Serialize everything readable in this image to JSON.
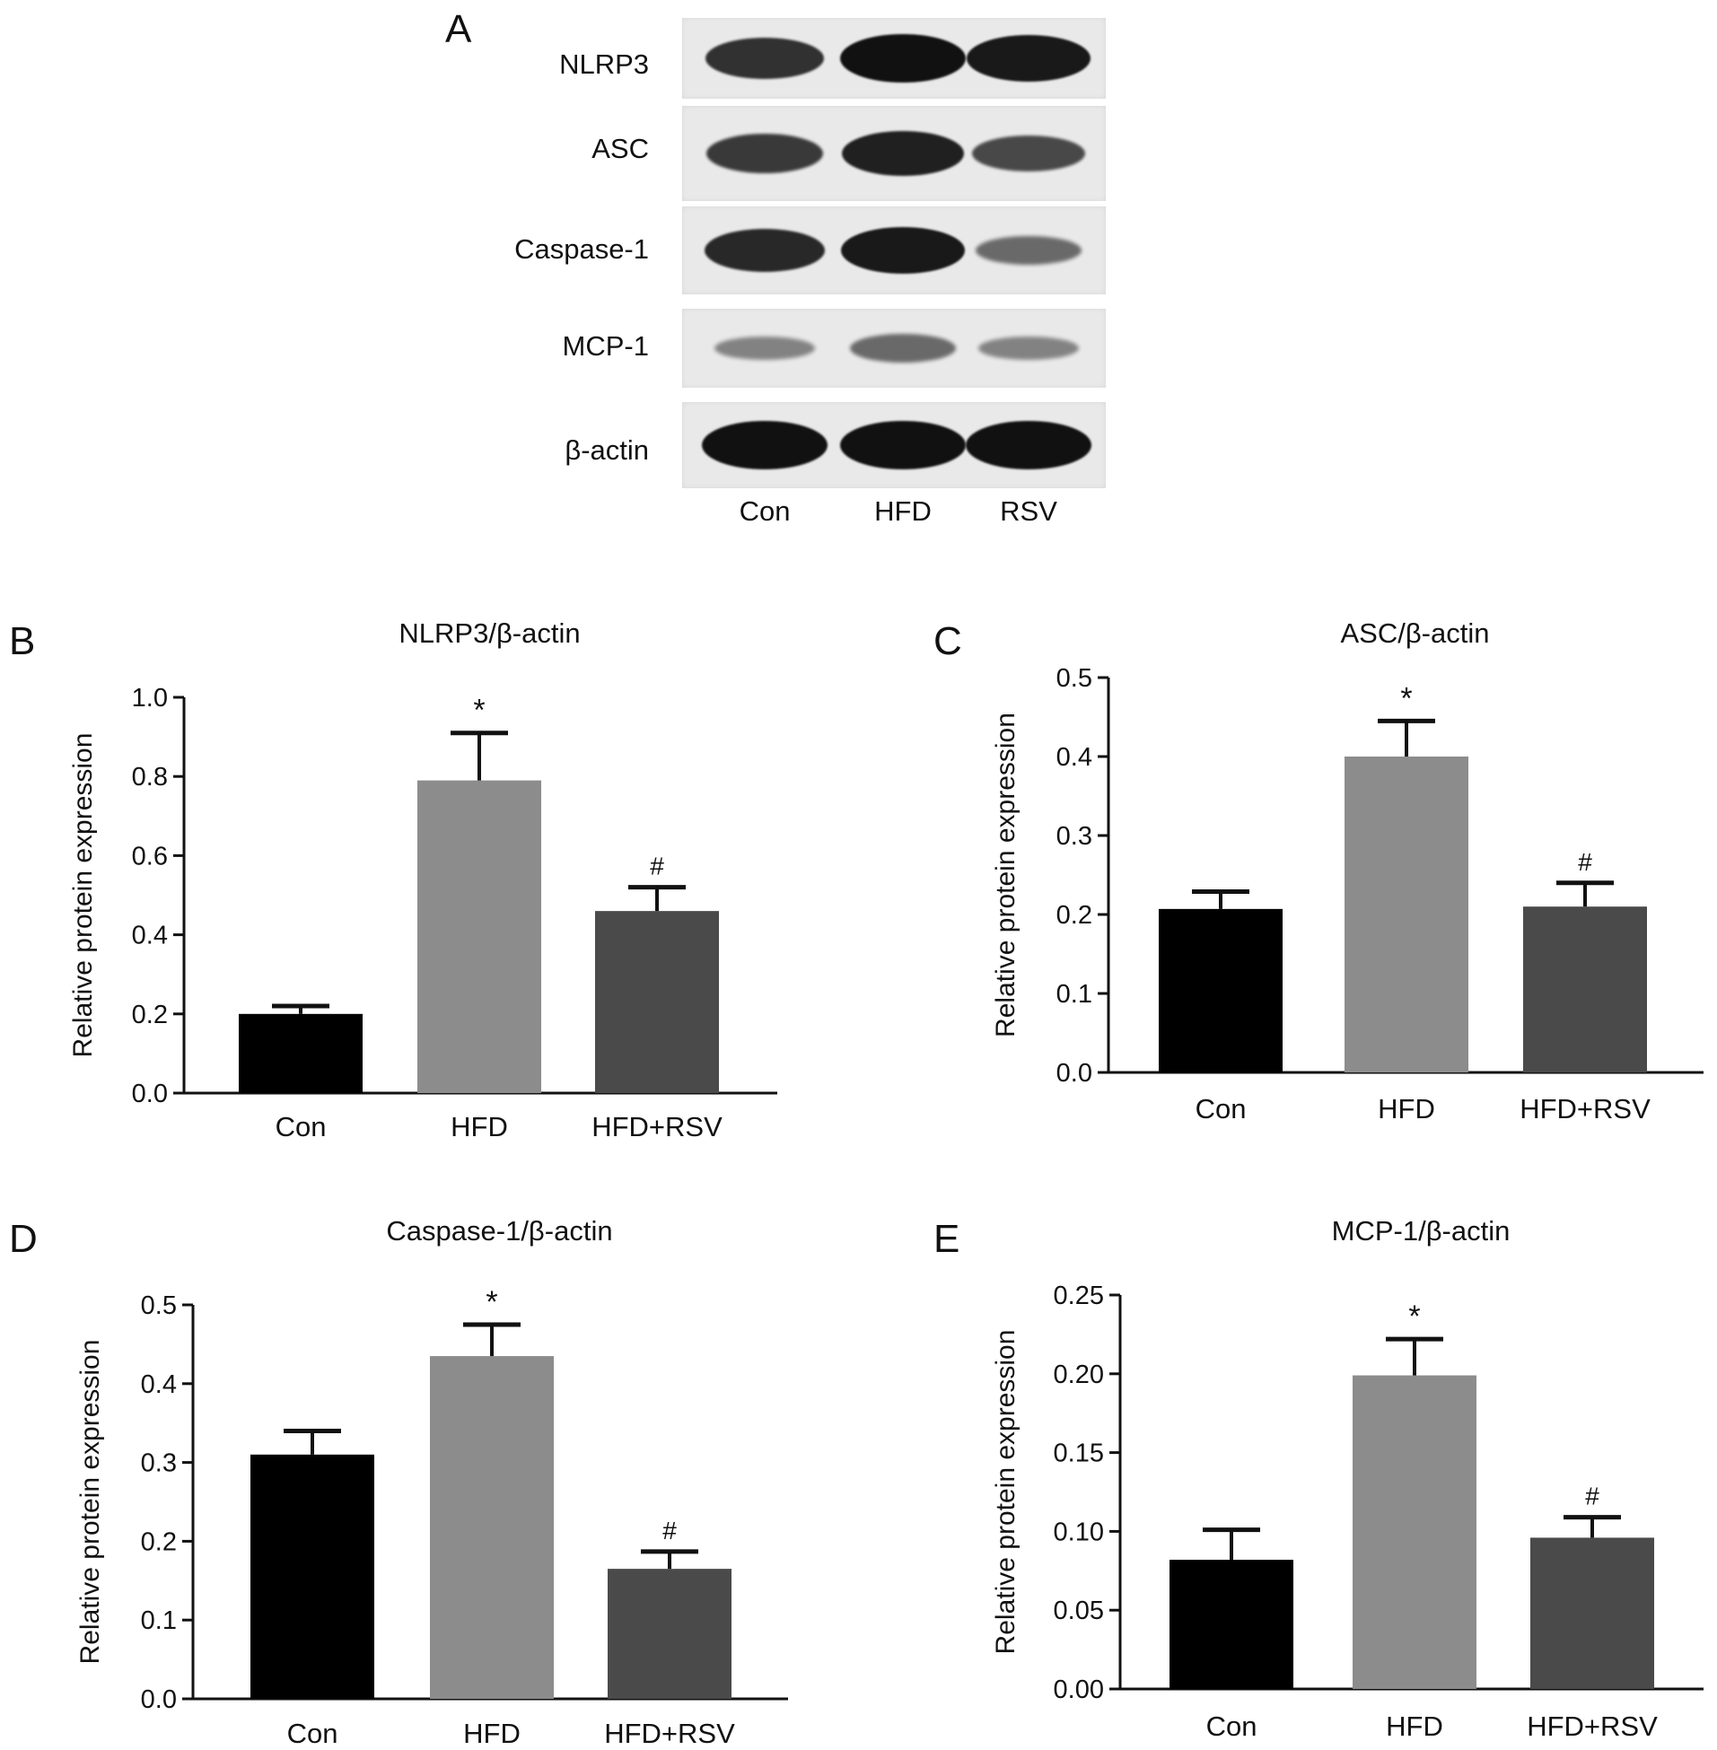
{
  "panel_a": {
    "letter": "A",
    "proteins": [
      "NLRP3",
      "ASC",
      "Caspase-1",
      "MCP-1",
      "β-actin"
    ],
    "lanes": [
      "Con",
      "HFD",
      "RSV"
    ],
    "band_intensity": [
      [
        0.8,
        1.0,
        0.95
      ],
      [
        0.75,
        0.9,
        0.65
      ],
      [
        0.85,
        0.95,
        0.45
      ],
      [
        0.3,
        0.45,
        0.3
      ],
      [
        1.0,
        1.0,
        1.0
      ]
    ]
  },
  "chart_data": [
    {
      "letter": "B",
      "type": "bar",
      "title": "NLRP3/β-actin",
      "ylabel": "Relative protein expression",
      "xlabel": "",
      "categories": [
        "Con",
        "HFD",
        "HFD+RSV"
      ],
      "values": [
        0.2,
        0.79,
        0.46
      ],
      "errors": [
        0.02,
        0.12,
        0.06
      ],
      "significance": [
        "",
        "*",
        "#"
      ],
      "ylim": [
        0,
        1.0
      ],
      "yticks": [
        0.0,
        0.2,
        0.4,
        0.6,
        0.8,
        1.0
      ],
      "ytick_labels": [
        "0.0",
        "0.2",
        "0.4",
        "0.6",
        "0.8",
        "1.0"
      ],
      "colors": [
        "#000000",
        "#8c8c8c",
        "#4a4a4a"
      ]
    },
    {
      "letter": "C",
      "type": "bar",
      "title": "ASC/β-actin",
      "ylabel": "Relative protein expression",
      "xlabel": "",
      "categories": [
        "Con",
        "HFD",
        "HFD+RSV"
      ],
      "values": [
        0.207,
        0.4,
        0.21
      ],
      "errors": [
        0.022,
        0.045,
        0.03
      ],
      "significance": [
        "",
        "*",
        "#"
      ],
      "ylim": [
        0,
        0.5
      ],
      "yticks": [
        0.0,
        0.1,
        0.2,
        0.3,
        0.4,
        0.5
      ],
      "ytick_labels": [
        "0.0",
        "0.1",
        "0.2",
        "0.3",
        "0.4",
        "0.5"
      ],
      "colors": [
        "#000000",
        "#8c8c8c",
        "#4a4a4a"
      ]
    },
    {
      "letter": "D",
      "type": "bar",
      "title": "Caspase-1/β-actin",
      "ylabel": "Relative protein expression",
      "xlabel": "",
      "categories": [
        "Con",
        "HFD",
        "HFD+RSV"
      ],
      "values": [
        0.31,
        0.435,
        0.165
      ],
      "errors": [
        0.03,
        0.04,
        0.022
      ],
      "significance": [
        "",
        "*",
        "#"
      ],
      "ylim": [
        0,
        0.5
      ],
      "yticks": [
        0.0,
        0.1,
        0.2,
        0.3,
        0.4,
        0.5
      ],
      "ytick_labels": [
        "0.0",
        "0.1",
        "0.2",
        "0.3",
        "0.4",
        "0.5"
      ],
      "colors": [
        "#000000",
        "#8c8c8c",
        "#4a4a4a"
      ]
    },
    {
      "letter": "E",
      "type": "bar",
      "title": "MCP-1/β-actin",
      "ylabel": "Relative protein expression",
      "xlabel": "",
      "categories": [
        "Con",
        "HFD",
        "HFD+RSV"
      ],
      "values": [
        0.082,
        0.199,
        0.096
      ],
      "errors": [
        0.019,
        0.023,
        0.013
      ],
      "significance": [
        "",
        "*",
        "#"
      ],
      "ylim": [
        0,
        0.25
      ],
      "yticks": [
        0.0,
        0.05,
        0.1,
        0.15,
        0.2,
        0.25
      ],
      "ytick_labels": [
        "0.00",
        "0.05",
        "0.10",
        "0.15",
        "0.20",
        "0.25"
      ],
      "colors": [
        "#000000",
        "#8c8c8c",
        "#4a4a4a"
      ]
    }
  ]
}
